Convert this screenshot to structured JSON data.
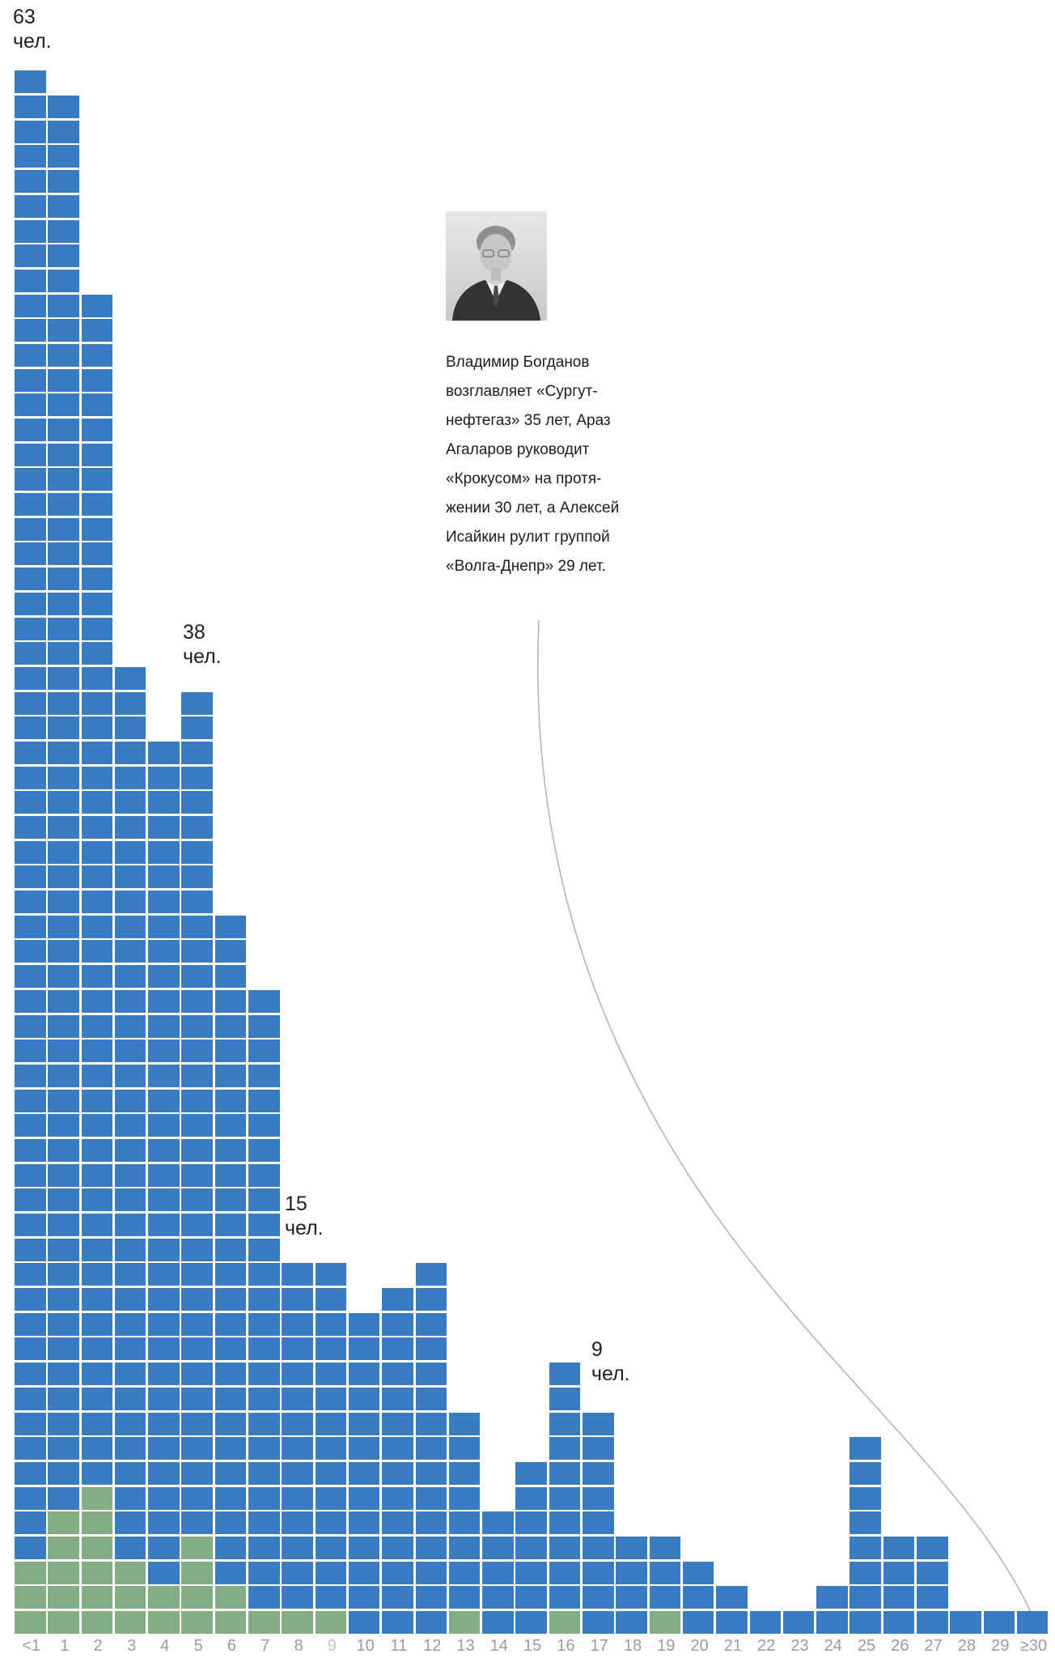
{
  "page": {
    "background": "#ffffff"
  },
  "chart_data": {
    "type": "bar",
    "subtype": "stacked-unit-waffle-columns",
    "title": "",
    "xlabel": "",
    "ylabel": "",
    "unit": "чел.",
    "grid": false,
    "legend": "none",
    "categories": [
      "<1",
      "1",
      "2",
      "3",
      "4",
      "5",
      "6",
      "7",
      "8",
      "9",
      "10",
      "11",
      "12",
      "13",
      "14",
      "15",
      "16",
      "17",
      "18",
      "19",
      "20",
      "21",
      "22",
      "23",
      "24",
      "25",
      "26",
      "27",
      "28",
      "29",
      "≥30"
    ],
    "totals": [
      63,
      62,
      54,
      39,
      36,
      38,
      29,
      26,
      15,
      15,
      13,
      14,
      15,
      9,
      5,
      7,
      11,
      9,
      4,
      4,
      3,
      2,
      1,
      1,
      2,
      8,
      4,
      4,
      1,
      1,
      1
    ],
    "series": [
      {
        "name": "blue-units",
        "color": "#3a7cc3",
        "values": [
          60,
          57,
          48,
          36,
          34,
          34,
          27,
          25,
          14,
          14,
          13,
          14,
          15,
          8,
          5,
          7,
          10,
          9,
          4,
          3,
          3,
          2,
          1,
          1,
          2,
          8,
          4,
          4,
          1,
          1,
          1
        ]
      },
      {
        "name": "green-units",
        "color": "#82ad85",
        "values": [
          3,
          5,
          6,
          3,
          2,
          4,
          2,
          1,
          1,
          1,
          0,
          0,
          0,
          1,
          0,
          0,
          1,
          0,
          0,
          1,
          0,
          0,
          0,
          0,
          0,
          0,
          0,
          0,
          0,
          0,
          0
        ]
      }
    ],
    "value_labels": [
      {
        "category": "<1",
        "value": "63",
        "unit": "чел."
      },
      {
        "category": "5",
        "value": "38",
        "unit": "чел."
      },
      {
        "category": "8",
        "value": "15",
        "unit": "чел."
      },
      {
        "category": "17",
        "value": "9",
        "unit": "чел."
      }
    ],
    "x_axis": {
      "color": "#9b9b9b",
      "muted_label": "9"
    }
  },
  "annotation": {
    "photo_name": "portrait-photo",
    "caption": "Владимир Богданов\nвозглавляет «Сургут-\nнефтегаз» 35 лет, Араз\nАгаларов руководит\n«Крокусом» на протя-\nжении 30 лет, а Алексей\nИсайкин рулит группой\n«Волга-Днепр» 29 лет.",
    "curve_color": "#b5b5b5"
  }
}
